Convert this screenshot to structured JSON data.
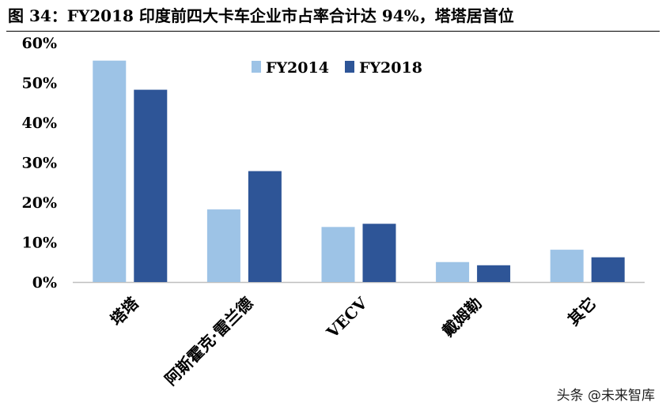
{
  "header": {
    "title": "图 34：FY2018 印度前四大卡车企业市占率合计达 94%，塔塔居首位"
  },
  "watermark": "头条 @未来智库",
  "chart_data": {
    "type": "bar",
    "title": "",
    "xlabel": "",
    "ylabel": "",
    "categories": [
      "塔塔",
      "阿斯霍克·雷兰德",
      "VECV",
      "戴姆勒",
      "其它"
    ],
    "series": [
      {
        "name": "FY2014",
        "values": [
          55.5,
          18.2,
          13.8,
          5.0,
          8.1
        ],
        "color": "#9dc3e6"
      },
      {
        "name": "FY2018",
        "values": [
          48.2,
          27.8,
          14.6,
          4.2,
          6.2
        ],
        "color": "#2e5597"
      }
    ],
    "y_ticks": [
      "0%",
      "10%",
      "20%",
      "30%",
      "40%",
      "50%",
      "60%"
    ],
    "ylim": [
      0,
      60
    ],
    "grid": false,
    "legend_position": "top-center"
  }
}
